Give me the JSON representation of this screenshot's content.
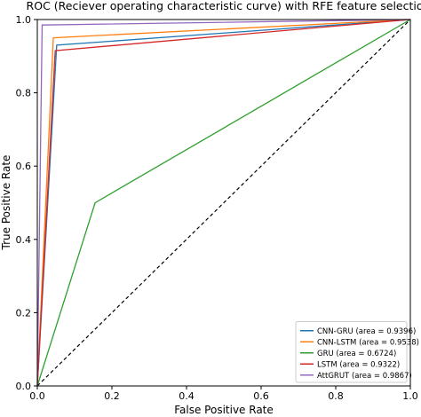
{
  "chart_data": {
    "type": "line",
    "title": "ROC (Reciever operating characteristic curve) with RFE feature selection",
    "xlabel": "False Positive Rate",
    "ylabel": "True Positive Rate",
    "xlim": [
      0,
      1
    ],
    "ylim": [
      0,
      1
    ],
    "xticks": [
      "0.0",
      "0.2",
      "0.4",
      "0.6",
      "0.8",
      "1.0"
    ],
    "yticks": [
      "0.0",
      "0.2",
      "0.4",
      "0.6",
      "0.8",
      "1.0"
    ],
    "grid": false,
    "legend_position": "lower right",
    "series": [
      {
        "name": "CNN-GRU (area = 0.9396)",
        "color": "#1f77b4",
        "x": [
          0,
          0.052,
          1
        ],
        "y": [
          0,
          0.93,
          1
        ]
      },
      {
        "name": "CNN-LSTM (area = 0.9538)",
        "color": "#ff7f0e",
        "x": [
          0,
          0.043,
          1
        ],
        "y": [
          0,
          0.95,
          1
        ]
      },
      {
        "name": "GRU (area = 0.6724)",
        "color": "#2ca02c",
        "x": [
          0,
          0.155,
          1
        ],
        "y": [
          0,
          0.5,
          1
        ]
      },
      {
        "name": "LSTM (area = 0.9322)",
        "color": "#d62728",
        "x": [
          0,
          0.048,
          1
        ],
        "y": [
          0,
          0.915,
          1
        ]
      },
      {
        "name": "AttGRUT (area = 0.9867)",
        "color": "#9467bd",
        "x": [
          0,
          0.013,
          1
        ],
        "y": [
          0,
          0.985,
          1
        ]
      }
    ],
    "reference_line": {
      "x": [
        0,
        1
      ],
      "y": [
        0,
        1
      ],
      "color": "#000000",
      "style": "dashed"
    }
  }
}
